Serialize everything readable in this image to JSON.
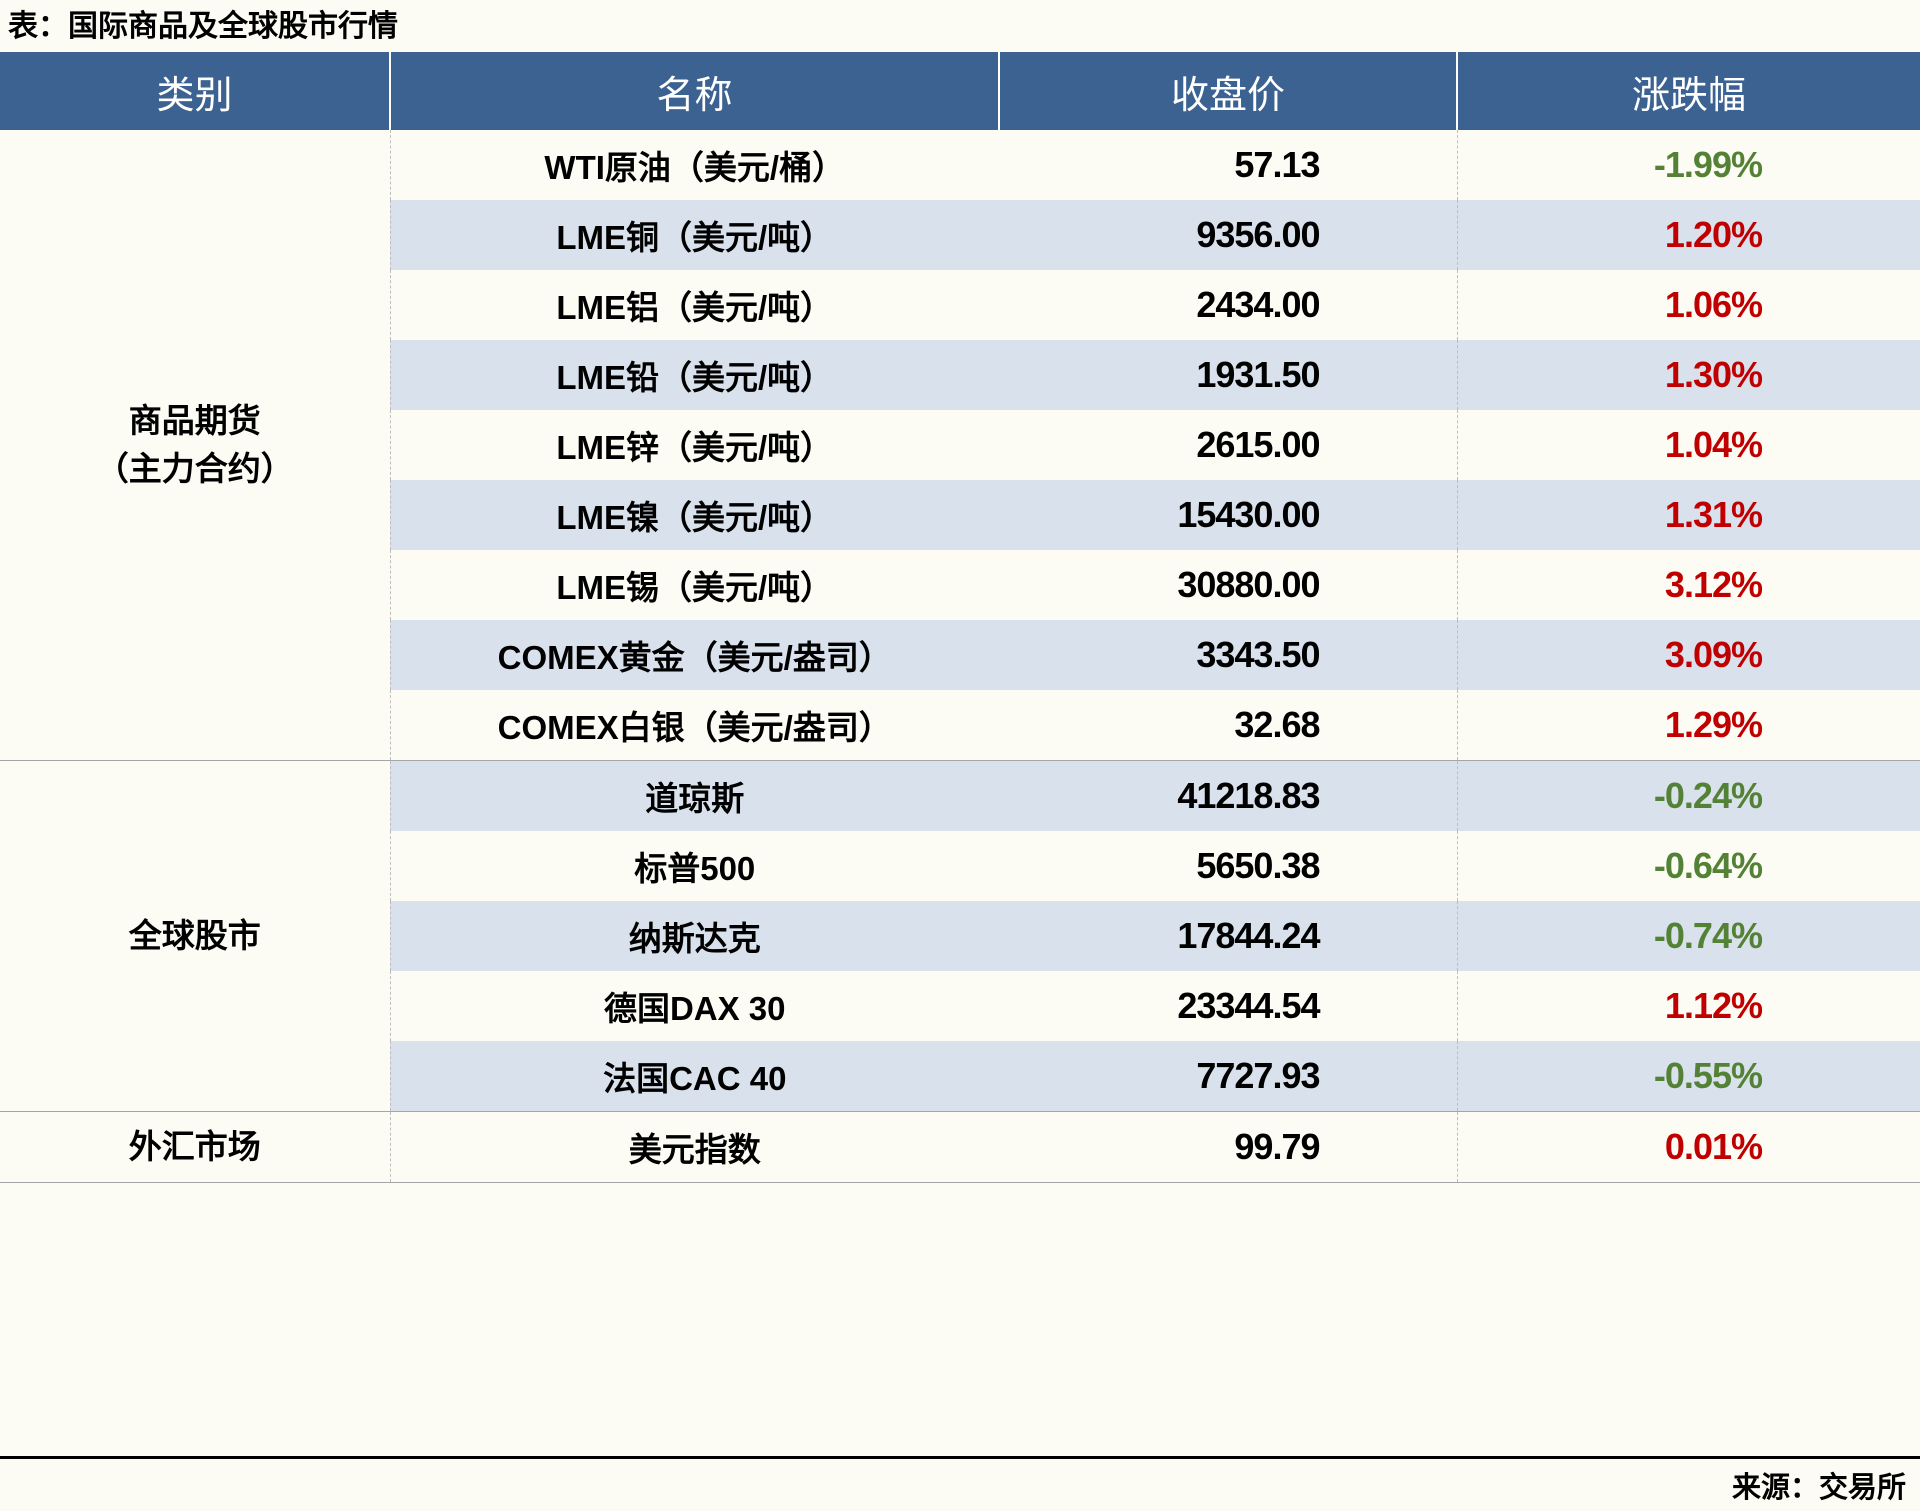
{
  "page": {
    "title": "表：国际商品及全球股市行情",
    "source": "来源：交易所"
  },
  "table": {
    "headers": [
      "类别",
      "名称",
      "收盘价",
      "涨跌幅"
    ],
    "colors": {
      "page_bg": "#fcfcf4",
      "header_bg": "#3b6291",
      "row_bg": "#fcfcf4",
      "row_alt_bg": "#d9e1ec",
      "up": "#c00000",
      "down": "#538135"
    },
    "sections": [
      {
        "category": "商品期货（主力合约）",
        "category_lines": [
          "商品期货",
          "（主力合约）"
        ],
        "rows": [
          {
            "name": "WTI原油（美元/桶）",
            "close": "57.13",
            "change": "-1.99%",
            "direction": "down"
          },
          {
            "name": "LME铜（美元/吨）",
            "close": "9356.00",
            "change": "1.20%",
            "direction": "up"
          },
          {
            "name": "LME铝（美元/吨）",
            "close": "2434.00",
            "change": "1.06%",
            "direction": "up"
          },
          {
            "name": "LME铅（美元/吨）",
            "close": "1931.50",
            "change": "1.30%",
            "direction": "up"
          },
          {
            "name": "LME锌（美元/吨）",
            "close": "2615.00",
            "change": "1.04%",
            "direction": "up"
          },
          {
            "name": "LME镍（美元/吨）",
            "close": "15430.00",
            "change": "1.31%",
            "direction": "up"
          },
          {
            "name": "LME锡（美元/吨）",
            "close": "30880.00",
            "change": "3.12%",
            "direction": "up"
          },
          {
            "name": "COMEX黄金（美元/盎司）",
            "close": "3343.50",
            "change": "3.09%",
            "direction": "up"
          },
          {
            "name": "COMEX白银（美元/盎司）",
            "close": "32.68",
            "change": "1.29%",
            "direction": "up"
          }
        ]
      },
      {
        "category": "全球股市",
        "category_lines": [
          "全球股市"
        ],
        "rows": [
          {
            "name": "道琼斯",
            "close": "41218.83",
            "change": "-0.24%",
            "direction": "down"
          },
          {
            "name": "标普500",
            "close": "5650.38",
            "change": "-0.64%",
            "direction": "down"
          },
          {
            "name": "纳斯达克",
            "close": "17844.24",
            "change": "-0.74%",
            "direction": "down"
          },
          {
            "name": "德国DAX 30",
            "close": "23344.54",
            "change": "1.12%",
            "direction": "up"
          },
          {
            "name": "法国CAC 40",
            "close": "7727.93",
            "change": "-0.55%",
            "direction": "down"
          }
        ]
      },
      {
        "category": "外汇市场",
        "category_lines": [
          "外汇市场"
        ],
        "rows": [
          {
            "name": "美元指数",
            "close": "99.79",
            "change": "0.01%",
            "direction": "up"
          }
        ]
      }
    ]
  }
}
